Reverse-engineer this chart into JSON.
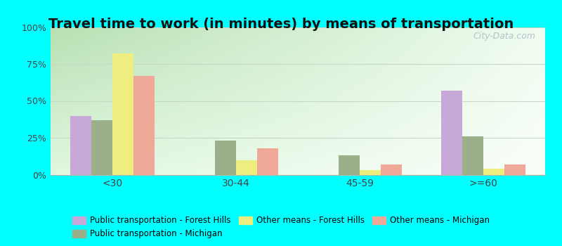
{
  "title": "Travel time to work (in minutes) by means of transportation",
  "categories": [
    "<30",
    "30-44",
    "45-59",
    ">=60"
  ],
  "series": [
    {
      "label": "Public transportation - Forest Hills",
      "color": "#c8a8d8",
      "values": [
        40,
        0,
        0,
        57
      ]
    },
    {
      "label": "Public transportation - Michigan",
      "color": "#9aaf8a",
      "values": [
        37,
        23,
        13,
        26
      ]
    },
    {
      "label": "Other means - Forest Hills",
      "color": "#eeed80",
      "values": [
        82,
        10,
        3,
        4
      ]
    },
    {
      "label": "Other means - Michigan",
      "color": "#f0a898",
      "values": [
        67,
        18,
        7,
        7
      ]
    }
  ],
  "ylim": [
    0,
    100
  ],
  "yticks": [
    0,
    25,
    50,
    75,
    100
  ],
  "ytick_labels": [
    "0%",
    "25%",
    "50%",
    "75%",
    "100%"
  ],
  "bar_width": 0.17,
  "figure_bg": "#00ffff",
  "grid_color": "#c8d8c8",
  "title_fontsize": 14,
  "bg_color_topleft": "#b8d8b0",
  "bg_color_bottomright": "#f4fff4",
  "watermark": "City-Data.com",
  "legend_order": [
    0,
    1,
    2,
    3
  ],
  "legend_ncol": 3
}
